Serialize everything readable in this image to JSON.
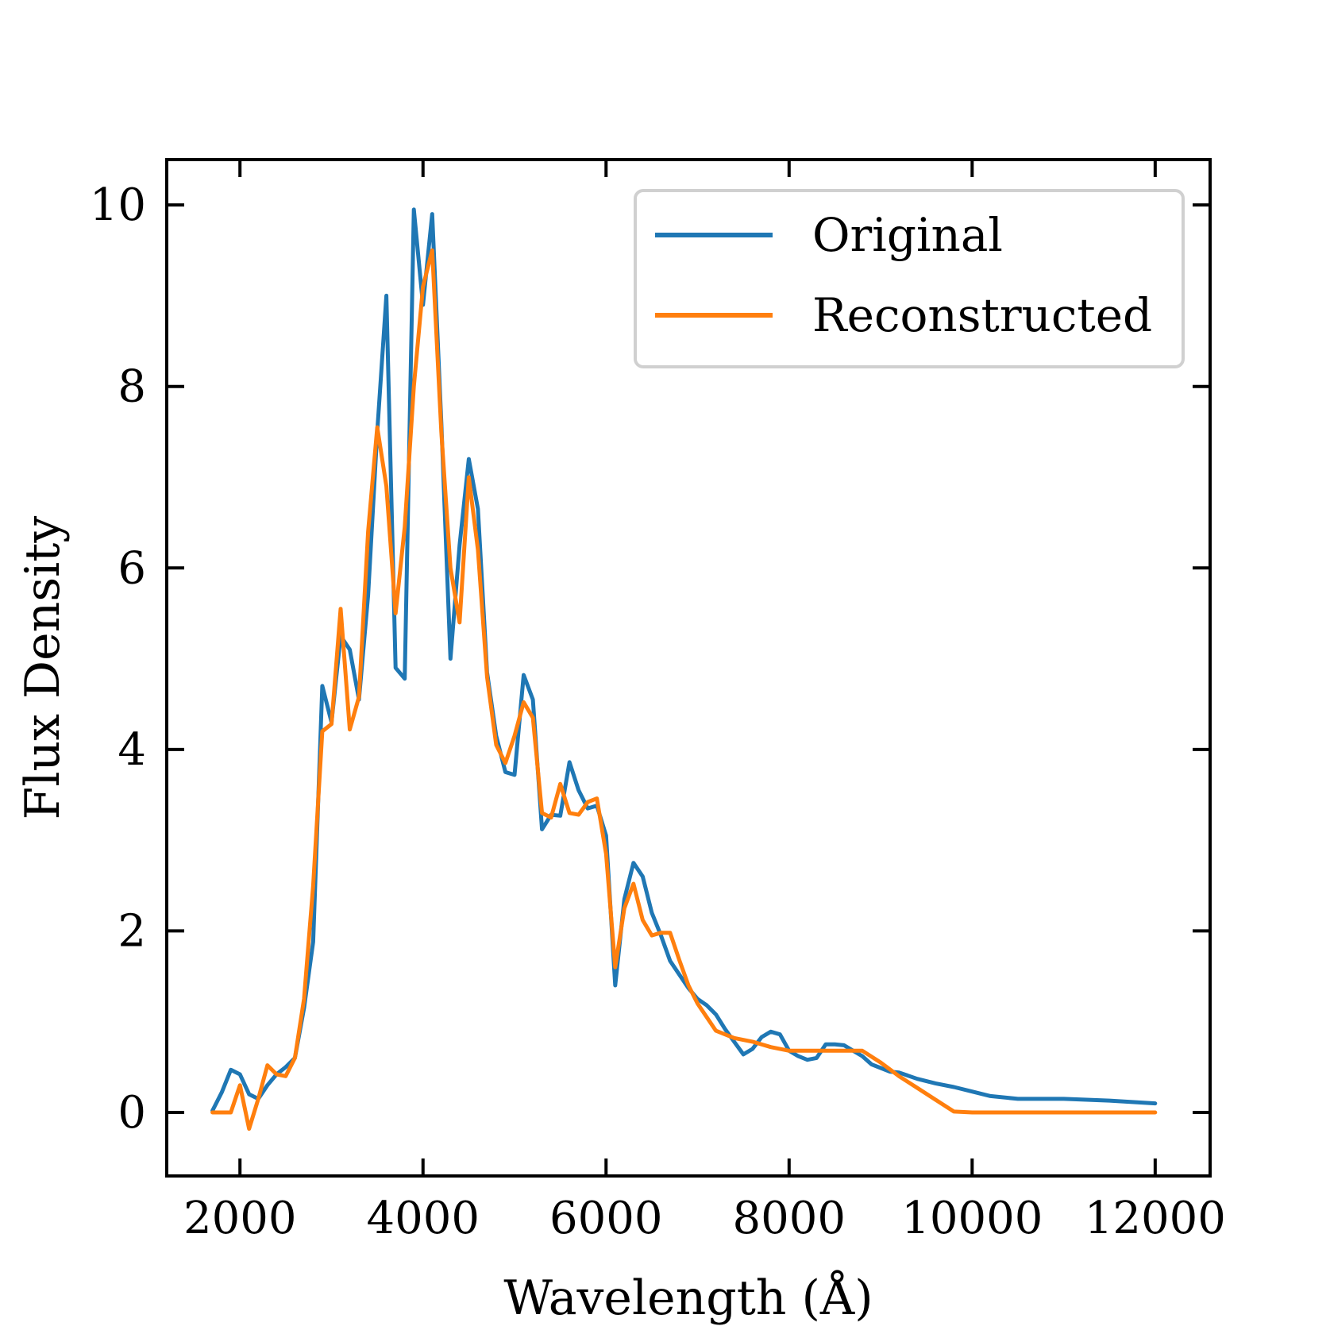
{
  "chart_data": {
    "type": "line",
    "xlabel": "Wavelength (Å)",
    "ylabel": "Flux Density",
    "xlim": [
      1200,
      12600
    ],
    "ylim": [
      -0.7,
      10.5
    ],
    "xticks": [
      2000,
      4000,
      6000,
      8000,
      10000,
      12000
    ],
    "xtick_labels": [
      "2000",
      "4000",
      "6000",
      "8000",
      "10000",
      "12000"
    ],
    "yticks": [
      0,
      2,
      4,
      6,
      8,
      10
    ],
    "ytick_labels": [
      "0",
      "2",
      "4",
      "6",
      "8",
      "10"
    ],
    "grid": false,
    "legend_position": "top-right",
    "series": [
      {
        "name": "Original",
        "color": "#1f77b4",
        "x": [
          1700,
          1800,
          1900,
          2000,
          2100,
          2200,
          2300,
          2400,
          2500,
          2600,
          2700,
          2800,
          2900,
          2950,
          3000,
          3100,
          3200,
          3300,
          3400,
          3500,
          3600,
          3700,
          3800,
          3900,
          4000,
          4100,
          4200,
          4300,
          4400,
          4500,
          4600,
          4700,
          4800,
          4900,
          5000,
          5100,
          5200,
          5300,
          5400,
          5500,
          5600,
          5700,
          5800,
          5900,
          6000,
          6100,
          6200,
          6300,
          6400,
          6500,
          6600,
          6700,
          6800,
          6900,
          7000,
          7100,
          7200,
          7300,
          7400,
          7500,
          7600,
          7700,
          7800,
          7900,
          8000,
          8100,
          8200,
          8300,
          8400,
          8500,
          8600,
          8700,
          8800,
          8900,
          9000,
          9100,
          9200,
          9400,
          9600,
          9800,
          10000,
          10200,
          10500,
          11000,
          11500,
          12000
        ],
        "y": [
          0.02,
          0.22,
          0.47,
          0.42,
          0.2,
          0.15,
          0.3,
          0.42,
          0.5,
          0.6,
          1.15,
          1.88,
          4.7,
          4.5,
          4.3,
          5.25,
          5.1,
          4.55,
          5.7,
          7.5,
          9.0,
          4.9,
          4.78,
          9.95,
          8.9,
          9.9,
          7.6,
          5.0,
          6.25,
          7.2,
          6.65,
          4.85,
          4.15,
          3.75,
          3.72,
          4.82,
          4.55,
          3.12,
          3.28,
          3.27,
          3.86,
          3.55,
          3.35,
          3.38,
          3.05,
          1.4,
          2.35,
          2.75,
          2.6,
          2.2,
          1.95,
          1.67,
          1.52,
          1.37,
          1.25,
          1.18,
          1.08,
          0.92,
          0.78,
          0.64,
          0.7,
          0.83,
          0.89,
          0.86,
          0.68,
          0.62,
          0.58,
          0.6,
          0.75,
          0.75,
          0.74,
          0.68,
          0.62,
          0.53,
          0.49,
          0.45,
          0.44,
          0.37,
          0.32,
          0.28,
          0.23,
          0.18,
          0.15,
          0.15,
          0.13,
          0.1
        ]
      },
      {
        "name": "Reconstructed",
        "color": "#ff7f0e",
        "x": [
          1700,
          1900,
          2000,
          2100,
          2200,
          2300,
          2400,
          2500,
          2600,
          2700,
          2800,
          2900,
          3000,
          3100,
          3200,
          3300,
          3400,
          3500,
          3600,
          3700,
          3800,
          3900,
          4000,
          4100,
          4200,
          4300,
          4400,
          4500,
          4600,
          4700,
          4800,
          4900,
          5000,
          5100,
          5200,
          5300,
          5400,
          5500,
          5600,
          5700,
          5800,
          5900,
          6000,
          6100,
          6200,
          6300,
          6400,
          6500,
          6600,
          6700,
          6800,
          6900,
          7000,
          7200,
          7400,
          7600,
          7800,
          8000,
          8200,
          8400,
          8600,
          8800,
          9000,
          9200,
          9400,
          9600,
          9800,
          10000,
          11000,
          12000
        ],
        "y": [
          0.0,
          0.0,
          0.3,
          -0.18,
          0.15,
          0.52,
          0.42,
          0.4,
          0.6,
          1.25,
          2.5,
          4.2,
          4.28,
          5.55,
          4.22,
          4.58,
          6.4,
          7.55,
          6.9,
          5.5,
          6.45,
          8.0,
          9.1,
          9.5,
          7.5,
          6.0,
          5.4,
          7.0,
          6.2,
          4.8,
          4.05,
          3.85,
          4.15,
          4.52,
          4.35,
          3.3,
          3.25,
          3.62,
          3.3,
          3.28,
          3.42,
          3.46,
          2.85,
          1.6,
          2.25,
          2.52,
          2.12,
          1.95,
          1.98,
          1.98,
          1.68,
          1.4,
          1.2,
          0.9,
          0.82,
          0.78,
          0.72,
          0.68,
          0.68,
          0.68,
          0.68,
          0.68,
          0.55,
          0.4,
          0.27,
          0.14,
          0.01,
          0.0,
          0.0,
          0.0
        ]
      }
    ]
  }
}
